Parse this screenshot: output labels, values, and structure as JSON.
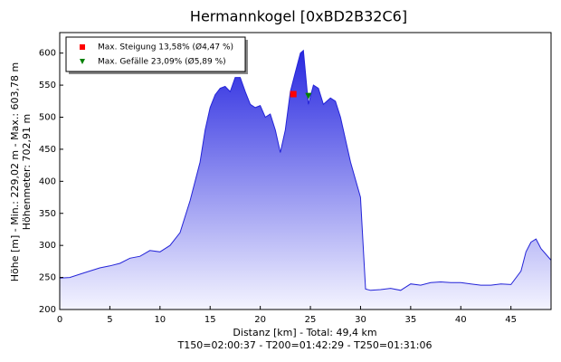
{
  "chart_data": {
    "type": "area",
    "title": "Hermannkogel [0xBD2B32C6]",
    "xlabel": [
      "Distanz [km] - Total: 49,4 km",
      "T150=02:00:37 - T200=01:42:29 - T250=01:31:06"
    ],
    "ylabel": [
      "Höhe [m] - Min.: 229,02 m - Max.: 603,78 m",
      "Höhenmeter: 702,91 m"
    ],
    "xlim": [
      0,
      49
    ],
    "ylim": [
      200,
      632
    ],
    "xticks": [
      0,
      5,
      10,
      15,
      20,
      25,
      30,
      35,
      40,
      45
    ],
    "yticks": [
      200,
      250,
      300,
      350,
      400,
      450,
      500,
      550,
      600
    ],
    "series": [
      {
        "color": "#2424d8",
        "x": [
          0,
          1,
          2,
          3,
          4,
          5,
          6,
          7,
          8,
          9,
          10,
          11,
          12,
          13,
          14,
          14.5,
          15,
          15.5,
          16,
          16.5,
          17,
          17.5,
          18,
          18.5,
          19,
          19.5,
          20,
          20.5,
          21,
          21.5,
          22,
          22.5,
          23,
          23.5,
          24,
          24.3,
          24.8,
          25.3,
          25.8,
          26.3,
          27,
          27.5,
          28,
          29,
          30,
          30.5,
          31,
          32,
          33,
          34,
          35,
          36,
          37,
          38,
          39,
          40,
          41,
          42,
          43,
          44,
          45,
          46,
          46.5,
          47,
          47.5,
          48,
          49
        ],
        "values": [
          249,
          250,
          255,
          260,
          265,
          268,
          272,
          280,
          283,
          292,
          290,
          300,
          320,
          370,
          430,
          480,
          515,
          535,
          545,
          548,
          540,
          562,
          562,
          540,
          520,
          515,
          518,
          500,
          505,
          480,
          445,
          480,
          540,
          570,
          600,
          604,
          520,
          550,
          545,
          520,
          530,
          525,
          500,
          430,
          375,
          232,
          230,
          231,
          233,
          230,
          240,
          238,
          242,
          243,
          242,
          242,
          240,
          238,
          238,
          240,
          239,
          260,
          290,
          305,
          310,
          295,
          277
        ]
      }
    ],
    "markers": [
      {
        "name": "Max. Steigung 13,58% (Ø4,47 %)",
        "color": "#ff0000",
        "shape": "square",
        "x": 23.3,
        "y": 536
      },
      {
        "name": "Max. Gefälle 23,09% (Ø5,89 %)",
        "color": "#008000",
        "shape": "triangle",
        "x": 24.8,
        "y": 533
      }
    ]
  }
}
